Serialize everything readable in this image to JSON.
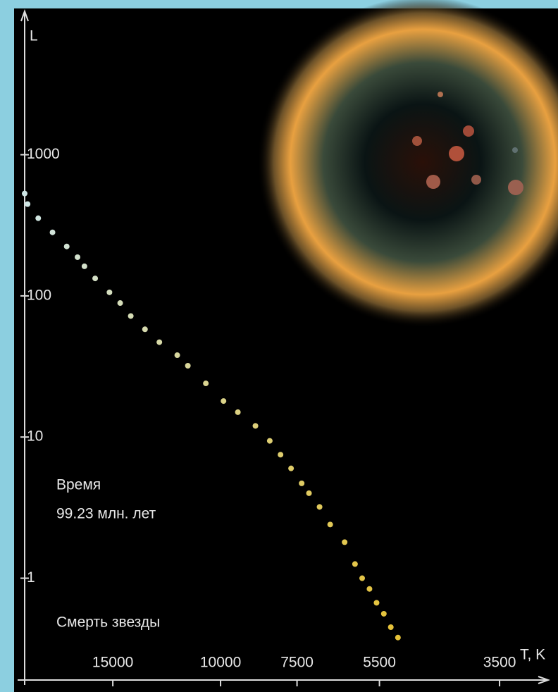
{
  "chart_data": {
    "type": "scatter",
    "y_label": "L",
    "x_label": "T, K",
    "annotations": [
      "Время",
      "99.23 млн. лет",
      "Смерть звезды"
    ],
    "log_x": true,
    "log_y": true,
    "xlim": [
      20900,
      2900
    ],
    "ylim": [
      0.19,
      10500
    ],
    "xticks": [
      15000,
      10000,
      7500,
      5500,
      3500
    ],
    "yticks": [
      1,
      10,
      100,
      1000
    ],
    "color_hot": "#cfe6e6",
    "color_cool": "#e6c030",
    "x": [
      20900,
      20670,
      19860,
      18820,
      17840,
      17130,
      16690,
      16030,
      15190,
      14590,
      14020,
      13290,
      12590,
      11770,
      11310,
      10570,
      9890,
      9370,
      8770,
      8310,
      7980,
      7670,
      7370,
      7170,
      6890,
      6620,
      6270,
      6030,
      5870,
      5710,
      5560,
      5410,
      5270,
      5130
    ],
    "values": [
      531,
      447,
      355,
      282,
      224,
      188,
      162,
      133,
      106,
      89,
      72,
      58,
      47,
      38,
      32,
      24,
      18,
      15,
      12,
      9.4,
      7.5,
      6.0,
      4.7,
      4.0,
      3.2,
      2.4,
      1.8,
      1.26,
      1.0,
      0.84,
      0.67,
      0.56,
      0.45,
      0.38
    ]
  }
}
